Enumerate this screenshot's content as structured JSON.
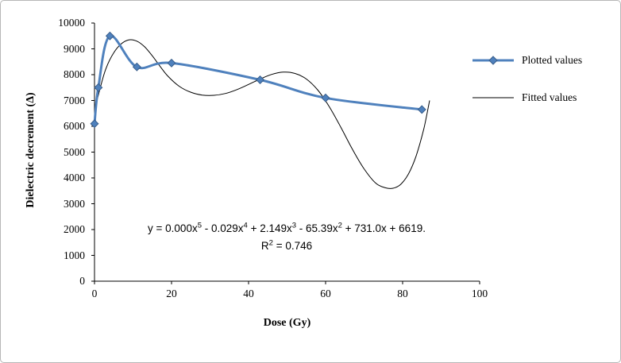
{
  "figure": {
    "background": "#ffffff",
    "border_color": "#b6b6b6"
  },
  "chart_data": {
    "type": "line",
    "title": "",
    "xlabel": "Dose (Gy)",
    "ylabel": "Dielectric decrement  (Δ)",
    "xlim": [
      0,
      100
    ],
    "ylim": [
      0,
      10000
    ],
    "x_ticks": [
      0,
      20,
      40,
      60,
      80,
      100
    ],
    "y_ticks": [
      0,
      1000,
      2000,
      3000,
      4000,
      5000,
      6000,
      7000,
      8000,
      9000,
      10000
    ],
    "grid": false,
    "legend_position": "right",
    "series": [
      {
        "name": "Plotted values",
        "style": "smooth-line-with-markers",
        "marker": "diamond",
        "color": "#4f81bd",
        "marker_edge": "#385d8a",
        "line_width": 3,
        "x": [
          0,
          1,
          4,
          11,
          20,
          43,
          60,
          85
        ],
        "y": [
          6100,
          7500,
          9500,
          8300,
          8450,
          7800,
          7100,
          6650
        ]
      },
      {
        "name": "Fitted values",
        "style": "smooth-line",
        "marker": "none",
        "color": "#000000",
        "line_width": 1,
        "x": [
          0,
          1.5,
          3,
          5,
          7,
          9,
          11,
          13,
          15,
          17,
          19,
          22,
          25,
          28,
          31,
          34,
          37,
          40,
          43,
          46,
          49,
          52,
          55,
          58,
          61,
          64,
          67,
          70,
          73,
          75.5,
          77.5,
          79.5,
          81.5,
          83.5,
          85.5,
          87
        ],
        "y": [
          6600,
          7500,
          8250,
          8850,
          9200,
          9350,
          9300,
          9080,
          8730,
          8330,
          7950,
          7550,
          7320,
          7210,
          7200,
          7270,
          7420,
          7620,
          7830,
          8010,
          8100,
          8050,
          7830,
          7400,
          6750,
          5950,
          5100,
          4350,
          3800,
          3620,
          3600,
          3750,
          4150,
          4850,
          5900,
          7000
        ]
      }
    ],
    "annotation": {
      "equation": "y = 0.000x^5 - 0.029x^4 + 2.149x^3 - 65.39x^2 + 731.0x + 6619.",
      "r_squared": "R^2 = 0.746"
    }
  },
  "equation_parts": {
    "p1": "y = 0.000x",
    "s1": "5",
    "p2": " - 0.029x",
    "s2": "4",
    "p3": " + 2.149x",
    "s3": "3",
    "p4": " - 65.39x",
    "s4": "2",
    "p5": " + 731.0x + 6619."
  },
  "r2_parts": {
    "base": "R",
    "sup": "2",
    "rest": " = 0.746"
  }
}
